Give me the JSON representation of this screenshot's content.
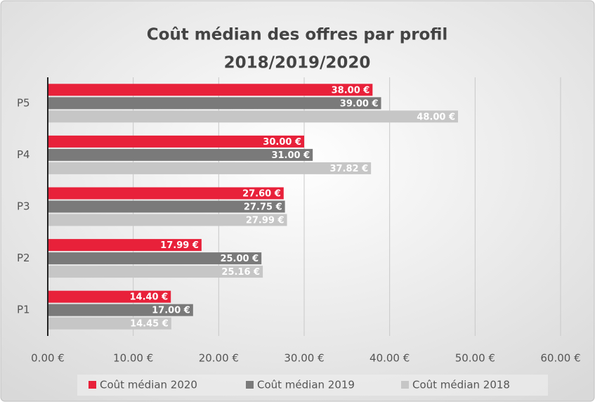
{
  "chart_data": {
    "type": "hbar",
    "title": [
      "Coût médian des offres par profil",
      "2018/2019/2020"
    ],
    "categories": [
      "P1",
      "P2",
      "P3",
      "P4",
      "P5"
    ],
    "series": [
      {
        "name": "Coût médian 2020",
        "color": "#e8213a",
        "values": [
          14.4,
          17.99,
          27.6,
          30.0,
          38.0
        ],
        "value_labels": [
          "14.40 €",
          "17.99 €",
          "27.60 €",
          "30.00 €",
          "38.00 €"
        ]
      },
      {
        "name": "Coût médian 2019",
        "color": "#7a7a7a",
        "values": [
          17.0,
          25.0,
          27.75,
          31.0,
          39.0
        ],
        "value_labels": [
          "17.00 €",
          "25.00 €",
          "27.75 €",
          "31.00 €",
          "39.00 €"
        ]
      },
      {
        "name": "Coût médian 2018",
        "color": "#c6c6c6",
        "values": [
          14.45,
          25.16,
          27.99,
          37.82,
          48.0
        ],
        "value_labels": [
          "14.45 €",
          "25.16 €",
          "27.99 €",
          "37.82 €",
          "48.00 €"
        ]
      }
    ],
    "xlim": [
      0,
      60
    ],
    "xticks": [
      {
        "value": 0,
        "label": "0.00 €"
      },
      {
        "value": 10,
        "label": "10.00 €"
      },
      {
        "value": 20,
        "label": "20.00 €"
      },
      {
        "value": 30,
        "label": "30.00 €"
      },
      {
        "value": 40,
        "label": "40.00 €"
      },
      {
        "value": 50,
        "label": "50.00 €"
      },
      {
        "value": 60,
        "label": "60.00 €"
      }
    ],
    "grid": true,
    "legend": "bottom"
  }
}
